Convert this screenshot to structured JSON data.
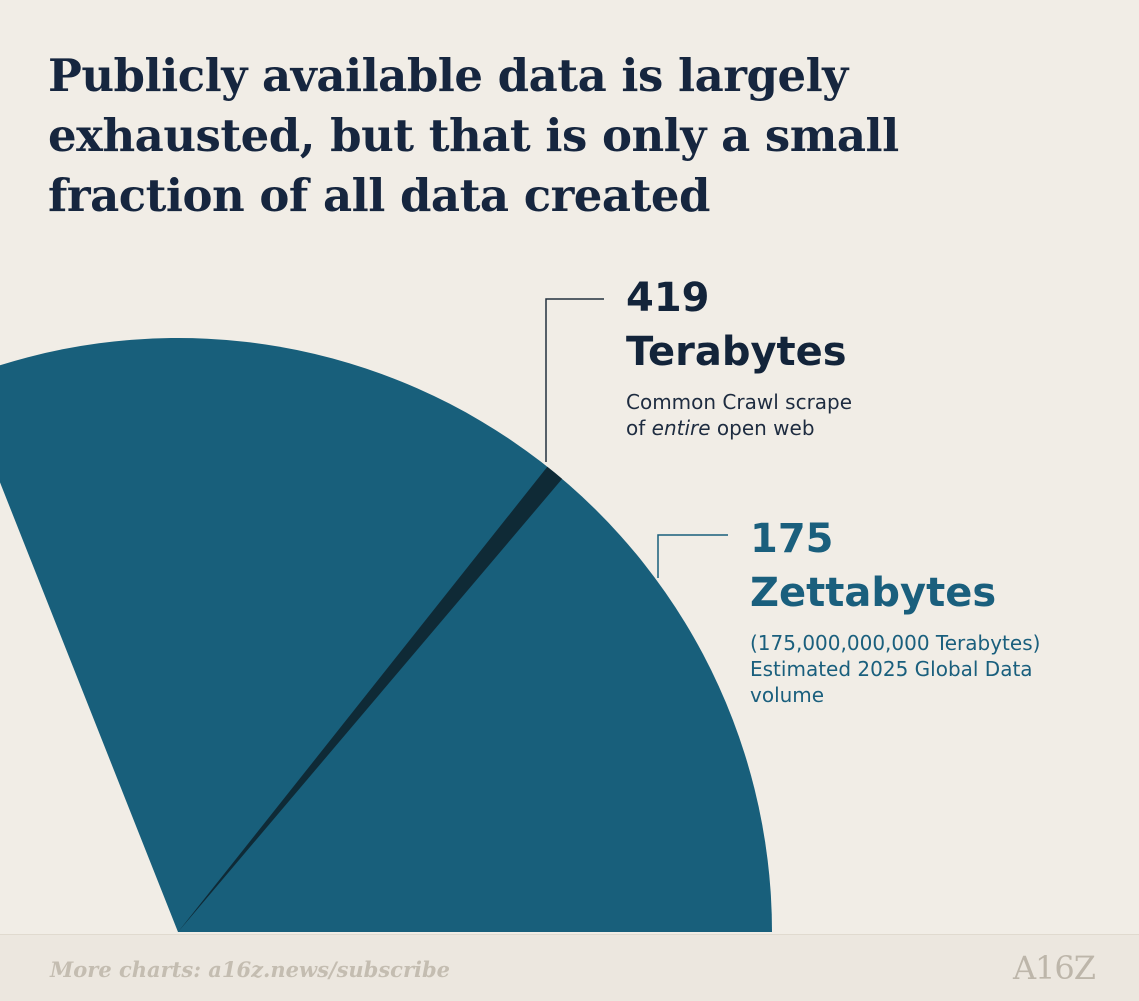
{
  "title": "Publicly available data is largely exhausted, but that is only a small fraction of all data created",
  "chart_data": {
    "type": "pie",
    "slices": [
      {
        "value_line": "419",
        "unit_line": "Terabytes",
        "desc_html": "Common Crawl scrape<br>of <em>entire</em> open web",
        "color": "#0f2a36"
      },
      {
        "value_line": "175",
        "unit_line": "Zettabytes",
        "desc_html": "(175,000,000,000 Terabytes)<br>Estimated 2025 Global Data volume",
        "color": "#185f7b"
      }
    ]
  },
  "footer": {
    "text": "More charts: a16z.news/subscribe",
    "logo": "A16Z"
  }
}
